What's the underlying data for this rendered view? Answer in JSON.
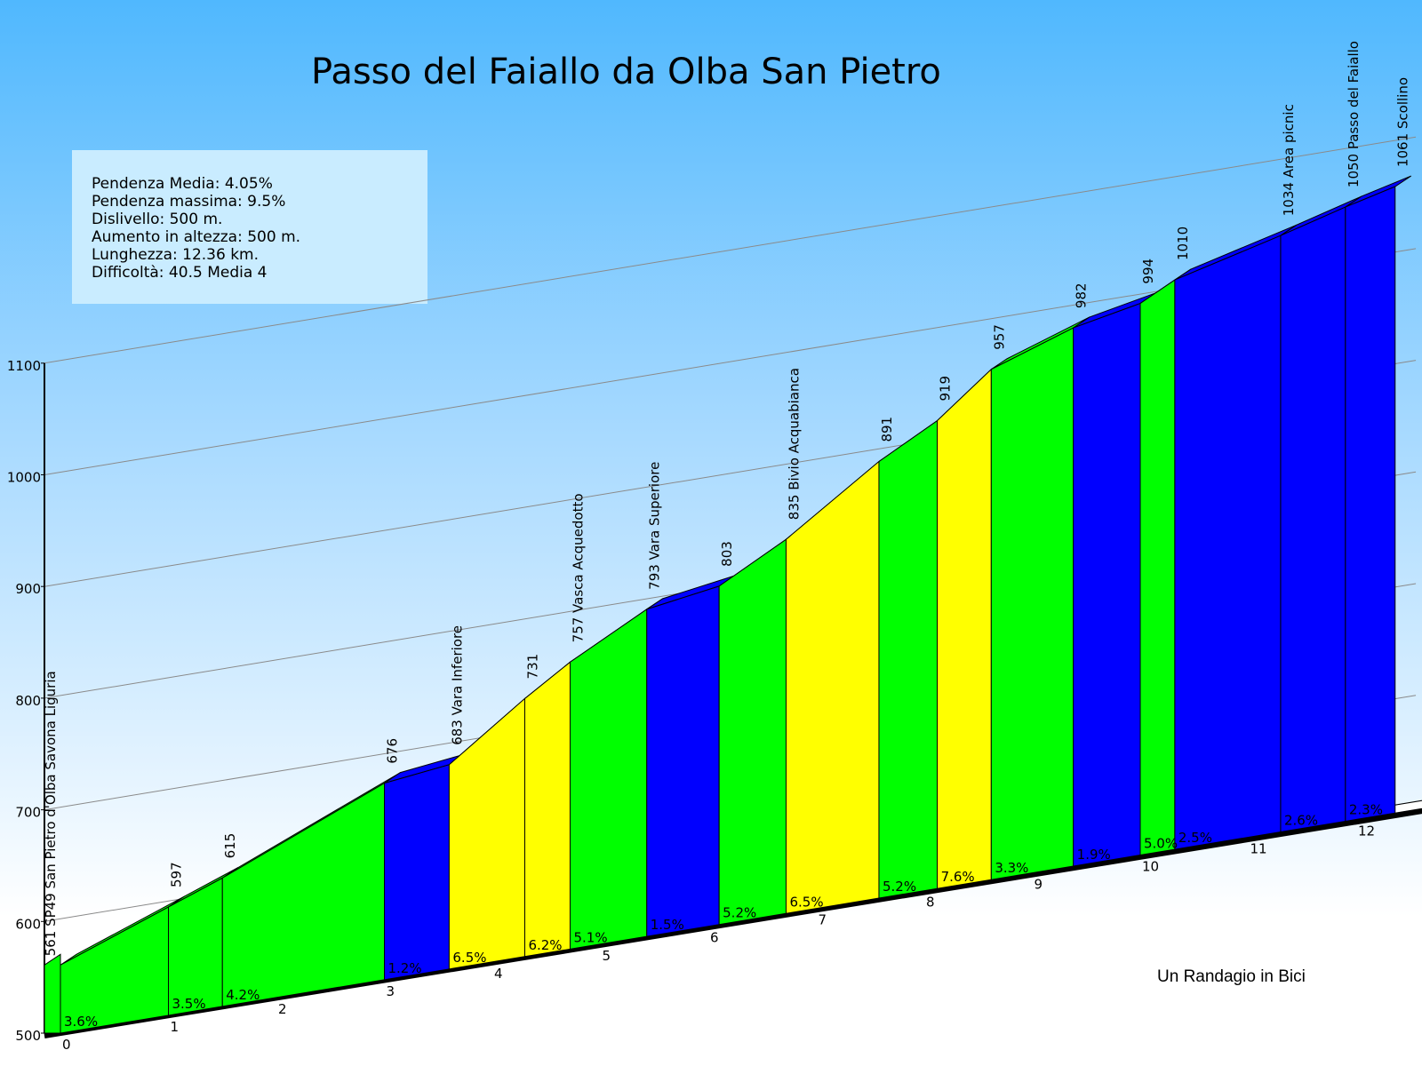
{
  "title": "Passo del Faiallo da Olba San Pietro",
  "stats": {
    "lines": [
      "Pendenza Media: 4.05%",
      "Pendenza massima: 9.5%",
      "Dislivello: 500  m.",
      "Aumento in altezza: 500  m.",
      "Lunghezza: 12.36 km.",
      "Difficoltà: 40.5 Media 4"
    ]
  },
  "credit": "Un Randagio in Bici",
  "colors": {
    "easy": "#00ff00",
    "medium": "#ffff00",
    "flat": "#0000ff"
  },
  "chart_data": {
    "type": "area",
    "title": "Passo del Faiallo da Olba San Pietro",
    "xlabel": "",
    "ylabel": "",
    "xlim": [
      0,
      12.36
    ],
    "ylim": [
      500,
      1100
    ],
    "y_ticks": [
      500,
      600,
      700,
      800,
      900,
      1000,
      1100
    ],
    "x_ticks": [
      0,
      1,
      2,
      3,
      4,
      5,
      6,
      7,
      8,
      9,
      10,
      11,
      12
    ],
    "grid": true,
    "segments": [
      {
        "start_km": 0.0,
        "end_km": 1.0,
        "start_elev": 561,
        "end_elev": 597,
        "grade": "3.6%",
        "color": "#00ff00"
      },
      {
        "start_km": 1.0,
        "end_km": 1.5,
        "start_elev": 597,
        "end_elev": 615,
        "grade": "3.5%",
        "color": "#00ff00"
      },
      {
        "start_km": 1.5,
        "end_km": 3.0,
        "start_elev": 615,
        "end_elev": 676,
        "grade": "4.2%",
        "color": "#00ff00"
      },
      {
        "start_km": 3.0,
        "end_km": 3.6,
        "start_elev": 676,
        "end_elev": 683,
        "grade": "1.2%",
        "color": "#0000ff"
      },
      {
        "start_km": 3.6,
        "end_km": 4.3,
        "start_elev": 683,
        "end_elev": 731,
        "grade": "6.5%",
        "color": "#ffff00"
      },
      {
        "start_km": 4.3,
        "end_km": 4.72,
        "start_elev": 731,
        "end_elev": 757,
        "grade": "6.2%",
        "color": "#ffff00"
      },
      {
        "start_km": 4.72,
        "end_km": 5.43,
        "start_elev": 757,
        "end_elev": 793,
        "grade": "5.1%",
        "color": "#00ff00"
      },
      {
        "start_km": 5.43,
        "end_km": 6.1,
        "start_elev": 793,
        "end_elev": 803,
        "grade": "1.5%",
        "color": "#0000ff"
      },
      {
        "start_km": 6.1,
        "end_km": 6.72,
        "start_elev": 803,
        "end_elev": 835,
        "grade": "5.2%",
        "color": "#00ff00"
      },
      {
        "start_km": 6.72,
        "end_km": 7.58,
        "start_elev": 835,
        "end_elev": 891,
        "grade": "6.5%",
        "color": "#ffff00"
      },
      {
        "start_km": 7.58,
        "end_km": 8.12,
        "start_elev": 891,
        "end_elev": 919,
        "grade": "5.2%",
        "color": "#00ff00"
      },
      {
        "start_km": 8.12,
        "end_km": 8.62,
        "start_elev": 919,
        "end_elev": 957,
        "grade": "7.6%",
        "color": "#ffff00"
      },
      {
        "start_km": 8.62,
        "end_km": 9.38,
        "start_elev": 957,
        "end_elev": 982,
        "grade": "3.3%",
        "color": "#00ff00"
      },
      {
        "start_km": 9.38,
        "end_km": 10.0,
        "start_elev": 982,
        "end_elev": 994,
        "grade": "1.9%",
        "color": "#0000ff"
      },
      {
        "start_km": 10.0,
        "end_km": 10.32,
        "start_elev": 994,
        "end_elev": 1010,
        "grade": "5.0%",
        "color": "#00ff00"
      },
      {
        "start_km": 10.32,
        "end_km": 11.3,
        "start_elev": 1010,
        "end_elev": 1034,
        "grade": "2.5%",
        "color": "#0000ff"
      },
      {
        "start_km": 11.3,
        "end_km": 11.9,
        "start_elev": 1034,
        "end_elev": 1050,
        "grade": "2.6%",
        "color": "#0000ff"
      },
      {
        "start_km": 11.9,
        "end_km": 12.36,
        "start_elev": 1050,
        "end_elev": 1061,
        "grade": "2.3%",
        "color": "#0000ff"
      }
    ],
    "points": [
      {
        "km": 0.0,
        "label": "561 SP49 San Pietro d'Olba Savona Liguria"
      },
      {
        "km": 1.0,
        "label": "597"
      },
      {
        "km": 1.5,
        "label": "615"
      },
      {
        "km": 3.0,
        "label": "676"
      },
      {
        "km": 3.6,
        "label": "683 Vara Inferiore"
      },
      {
        "km": 4.3,
        "label": "731"
      },
      {
        "km": 4.72,
        "label": "757 Vasca Acquedotto"
      },
      {
        "km": 5.43,
        "label": "793 Vara Superiore"
      },
      {
        "km": 6.1,
        "label": "803"
      },
      {
        "km": 6.72,
        "label": "835 Bivio Acquabianca"
      },
      {
        "km": 7.58,
        "label": "891"
      },
      {
        "km": 8.12,
        "label": "919"
      },
      {
        "km": 8.62,
        "label": "957"
      },
      {
        "km": 9.38,
        "label": "982"
      },
      {
        "km": 10.0,
        "label": "994"
      },
      {
        "km": 10.32,
        "label": "1010"
      },
      {
        "km": 11.3,
        "label": "1034 Area picnic"
      },
      {
        "km": 11.9,
        "label": "1050 Passo del Faiallo"
      },
      {
        "km": 12.36,
        "label": "1061 Scollino"
      }
    ]
  }
}
